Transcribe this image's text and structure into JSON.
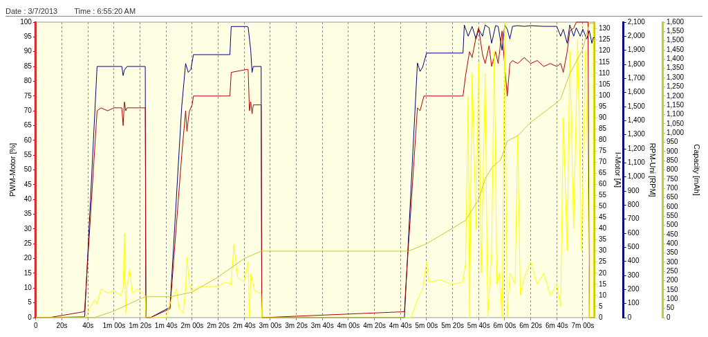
{
  "chart_data": [
    {
      "type": "line",
      "annotations": [
        "Date : 3/7/2013",
        "Time : 6:55:20 AM"
      ],
      "ylabel": "PWM-Motor [%]",
      "y2label": "I-Motor [A]",
      "y3label": "RPM-Uni [RPM]",
      "xlim": [
        0,
        429
      ],
      "xticks": [
        0,
        {
          "value": 20,
          "label": "20s"
        },
        {
          "value": 40,
          "label": "40s"
        },
        {
          "value": 60,
          "label": "1m 00s"
        },
        {
          "value": 80,
          "label": "1m 20s"
        },
        {
          "value": 100,
          "label": "1m 40s"
        },
        {
          "value": 120,
          "label": "2m 00s"
        },
        {
          "value": 140,
          "label": "2m 20s"
        },
        {
          "value": 160,
          "label": "2m 40s"
        },
        {
          "value": 180,
          "label": "3m 00s"
        },
        {
          "value": 200,
          "label": "3m 20s"
        },
        {
          "value": 220,
          "label": "3m 40s"
        },
        {
          "value": 240,
          "label": "4m 00s"
        },
        {
          "value": 260,
          "label": "4m 20s"
        },
        {
          "value": 280,
          "label": "4m 40s"
        },
        {
          "value": 300,
          "label": "5m 00s"
        },
        {
          "value": 320,
          "label": "5m 20s"
        },
        {
          "value": 340,
          "label": "5m 40s"
        },
        {
          "value": 360,
          "label": "6m 00s"
        },
        {
          "value": 380,
          "label": "6m 20s"
        },
        {
          "value": 400,
          "label": "6m 40s"
        },
        {
          "value": 420,
          "label": "7m 00s"
        }
      ],
      "ylim": [
        0,
        100
      ],
      "yticks": [
        0,
        5,
        10,
        15,
        20,
        25,
        30,
        35,
        40,
        45,
        50,
        55,
        60,
        65,
        70,
        75,
        80,
        85,
        90,
        95,
        100
      ],
      "y2lim": [
        0,
        133
      ],
      "y2ticks": [
        0,
        5,
        10,
        15,
        20,
        25,
        30,
        35,
        40,
        45,
        50,
        55,
        60,
        65,
        70,
        75,
        80,
        85,
        90,
        95,
        100,
        105,
        110,
        115,
        120,
        125,
        130
      ],
      "y3lim": [
        0,
        2100
      ],
      "y3ticks": [
        0,
        100,
        200,
        300,
        400,
        500,
        600,
        700,
        800,
        900,
        {
          "value": 1000,
          "label": "1,000"
        },
        {
          "value": 1100,
          "label": "1,100"
        },
        {
          "value": 1200,
          "label": "1,200"
        },
        {
          "value": 1300,
          "label": "1,300"
        },
        {
          "value": 1400,
          "label": "1,400"
        },
        {
          "value": 1500,
          "label": "1,500"
        },
        {
          "value": 1600,
          "label": "1,600"
        },
        {
          "value": 1700,
          "label": "1,700"
        },
        {
          "value": 1800,
          "label": "1,800"
        },
        {
          "value": 1900,
          "label": "1,900"
        },
        {
          "value": 2000,
          "label": "2,000"
        },
        {
          "value": 2100,
          "label": "2,100"
        }
      ],
      "grid": "x",
      "series": [
        {
          "color": "#ffff00",
          "axis": "y2",
          "x": [
            0,
            38,
            42,
            45,
            47,
            50,
            55,
            60,
            65,
            67,
            68,
            69,
            70,
            72,
            74,
            78,
            82,
            84,
            84.5,
            100,
            104,
            108,
            110,
            113,
            115,
            116,
            118,
            120,
            125,
            130,
            140,
            145,
            150,
            152,
            155,
            160,
            163,
            164,
            165,
            168,
            172,
            173,
            173.5,
            288,
            293,
            297,
            300,
            302,
            310,
            320,
            328,
            330,
            332,
            333,
            335,
            338,
            340,
            342,
            345,
            347,
            350,
            352,
            354,
            356,
            358,
            360,
            362,
            364,
            368,
            370,
            372,
            375,
            380,
            385,
            390,
            395,
            400,
            403,
            405,
            408,
            410,
            413,
            416,
            419,
            422,
            424,
            425,
            429
          ],
          "values": [
            0,
            0,
            5,
            8,
            6,
            13,
            11,
            12,
            10,
            13,
            38,
            2,
            14,
            22,
            11,
            13,
            11,
            10,
            0,
            0,
            8,
            13,
            4,
            2,
            13,
            27,
            14,
            12,
            14,
            14,
            14,
            16,
            15,
            33,
            18,
            16,
            25,
            0,
            20,
            12,
            11,
            11,
            0,
            0,
            8,
            13,
            25,
            16,
            17,
            15,
            16,
            25,
            100,
            0,
            110,
            40,
            115,
            20,
            110,
            0,
            30,
            120,
            15,
            20,
            0,
            133,
            0,
            20,
            15,
            82,
            10,
            18,
            25,
            15,
            20,
            10,
            15,
            5,
            90,
            30,
            120,
            40,
            125,
            30,
            120,
            60,
            0,
            0
          ]
        },
        {
          "color": "#b00000",
          "x": [
            0,
            10,
            37,
            37.5,
            47,
            50,
            55,
            60,
            66,
            67,
            68,
            69,
            70,
            84,
            84.5,
            88,
            103,
            112,
            115,
            116,
            117,
            118,
            120,
            121,
            149,
            150,
            162,
            163,
            164,
            165,
            166,
            167,
            168,
            173,
            173.5,
            283,
            284,
            293,
            295,
            298,
            328,
            330,
            333,
            335,
            338,
            340,
            343,
            345,
            348,
            350,
            353,
            355,
            358,
            360,
            362,
            364,
            366,
            370,
            375,
            380,
            385,
            390,
            395,
            400,
            403,
            405,
            408,
            410,
            413,
            415,
            420,
            424,
            425,
            429
          ],
          "values": [
            0,
            0,
            2,
            3,
            70,
            71,
            70,
            71,
            71,
            65,
            73,
            70,
            71,
            71,
            0,
            0,
            3,
            55,
            70,
            63,
            67,
            70,
            72,
            75,
            75,
            83,
            84,
            84,
            70,
            73,
            69,
            72,
            72,
            72,
            0,
            2,
            10,
            71,
            70,
            75,
            75,
            82,
            90,
            88,
            95,
            98,
            89,
            86,
            92,
            85,
            90,
            86,
            97,
            85,
            75,
            86,
            87,
            86,
            88,
            86,
            87,
            85,
            86,
            85,
            86,
            83,
            90,
            97,
            98,
            100,
            100,
            100,
            0,
            0
          ]
        },
        {
          "color": "#00007f",
          "axis": "y3",
          "x": [
            0,
            37,
            37.5,
            47,
            50,
            66,
            67,
            68,
            70,
            84,
            84.5,
            88,
            103,
            112,
            115,
            117,
            119,
            121,
            149,
            150,
            162,
            163,
            165,
            166,
            167,
            168,
            173,
            173.5,
            283,
            293,
            295,
            297,
            300,
            328,
            329,
            332,
            335,
            338,
            340,
            343,
            345,
            348,
            350,
            353,
            355,
            358,
            360,
            362,
            364,
            366,
            370,
            375,
            380,
            390,
            400,
            403,
            405,
            408,
            410,
            413,
            415,
            418,
            420,
            423,
            425,
            427,
            428,
            429
          ],
          "values": [
            0,
            5,
            10,
            1785,
            1785,
            1785,
            1720,
            1760,
            1785,
            1785,
            0,
            0,
            74,
            1500,
            1806,
            1743,
            1764,
            1869,
            1869,
            2069,
            2069,
            2065,
            1900,
            1743,
            1785,
            1785,
            1785,
            0,
            0,
            1810,
            1750,
            1780,
            1880,
            1880,
            2080,
            2000,
            2070,
            1980,
            2050,
            2000,
            2080,
            2060,
            1950,
            2075,
            2070,
            1900,
            2080,
            2050,
            1980,
            2070,
            2075,
            2070,
            2075,
            2070,
            2070,
            2000,
            2050,
            1950,
            2080,
            2000,
            2060,
            2000,
            2050,
            1980,
            2040,
            1950,
            1990,
            1990
          ]
        }
      ]
    },
    {
      "type": "line",
      "tick_labels": "y",
      "xlim": [
        0,
        429
      ],
      "ylabel": "Capacity [mAh]",
      "ylim": [
        0,
        1600
      ],
      "yticks": [
        0,
        50,
        100,
        150,
        200,
        250,
        300,
        350,
        400,
        450,
        500,
        550,
        600,
        650,
        700,
        750,
        800,
        850,
        900,
        950,
        {
          "value": 1000,
          "label": "1,000"
        },
        {
          "value": 1050,
          "label": "1,050"
        },
        {
          "value": 1100,
          "label": "1,100"
        },
        {
          "value": 1150,
          "label": "1,150"
        },
        {
          "value": 1200,
          "label": "1,200"
        },
        {
          "value": 1250,
          "label": "1,250"
        },
        {
          "value": 1300,
          "label": "1,300"
        },
        {
          "value": 1350,
          "label": "1,350"
        },
        {
          "value": 1400,
          "label": "1,400"
        },
        {
          "value": 1450,
          "label": "1,450"
        },
        {
          "value": 1500,
          "label": "1,500"
        },
        {
          "value": 1550,
          "label": "1,550"
        },
        {
          "value": 1600,
          "label": "1,600"
        }
      ],
      "series": [
        {
          "color": "#c8c832",
          "x": [
            0,
            45,
            60,
            80,
            84,
            103,
            120,
            140,
            160,
            173,
            286,
            300,
            320,
            330,
            340,
            345,
            350,
            357,
            362,
            370,
            380,
            400,
            403,
            410,
            420,
            425,
            429
          ],
          "values": [
            0,
            0,
            36,
            102,
            113,
            113,
            138,
            220,
            320,
            360,
            360,
            400,
            484,
            527,
            640,
            750,
            811,
            855,
            956,
            985,
            1058,
            1164,
            1185,
            1320,
            1454,
            1593,
            1593
          ]
        }
      ]
    }
  ]
}
